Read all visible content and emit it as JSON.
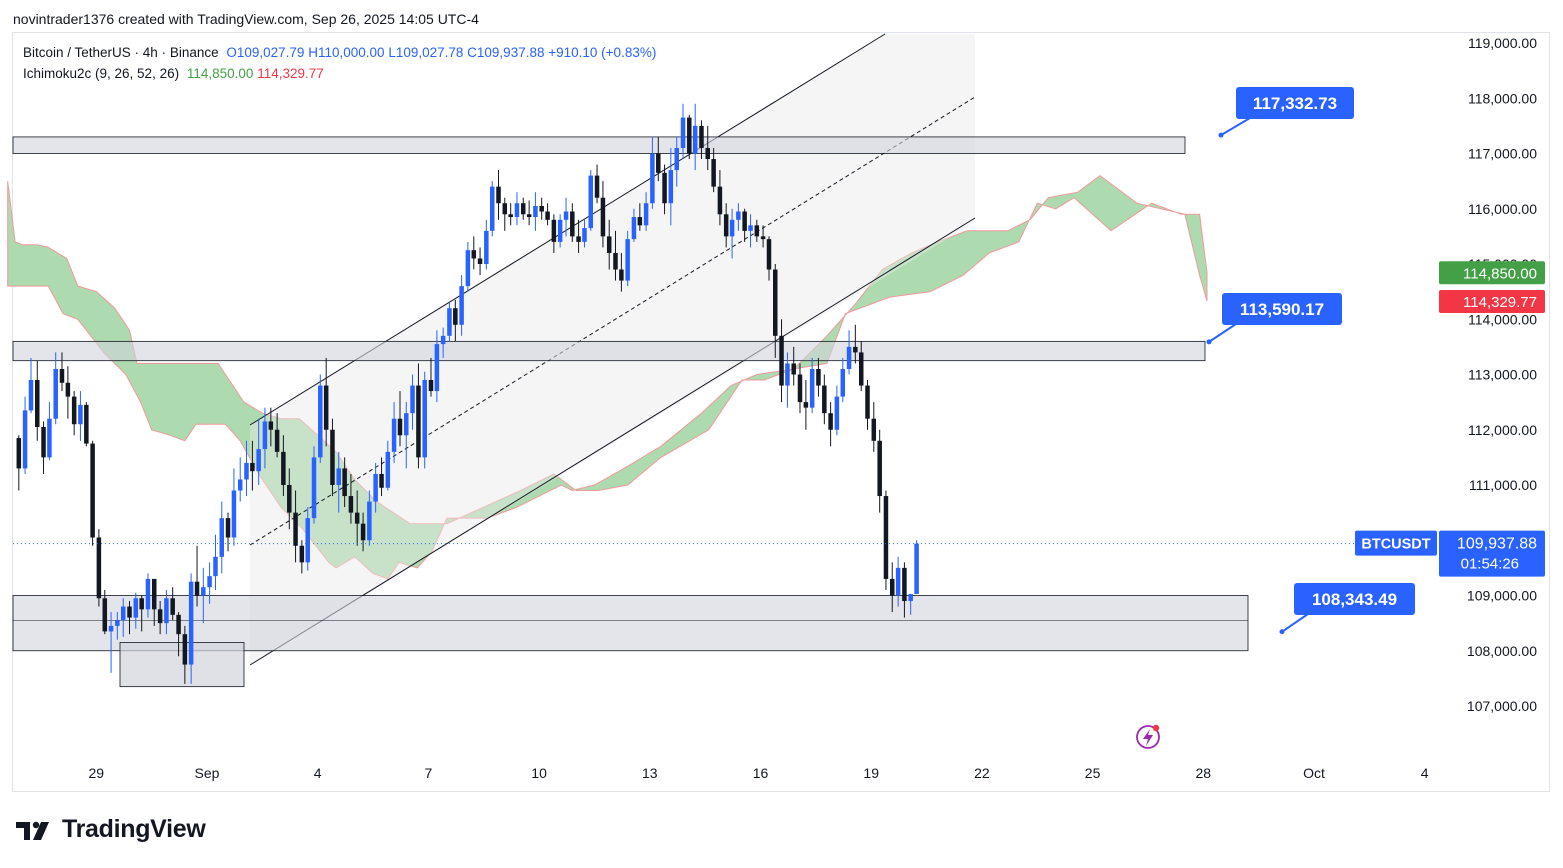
{
  "header": {
    "created_by": "novintrader1376 created with TradingView.com, Sep 26, 2025 14:05 UTC-4"
  },
  "legend": {
    "symbol": "Bitcoin / TetherUS · 4h · Binance",
    "open": "O109,027.79",
    "high": "H110,000.00",
    "low": "L109,027.78",
    "close": "C109,937.88",
    "change": "+910.10 (+0.83%)",
    "indicator_name": "Ichimoku2c (9, 26, 52, 26)",
    "indicator_value_a": "114,850.00",
    "indicator_value_b": "114,329.77"
  },
  "brand": {
    "name": "TradingView"
  },
  "colors": {
    "up": "#2962ff",
    "down": "#131722",
    "cloud_fill": "#a5d6a7",
    "cloud_edge": "#ef9a9a",
    "label_blue": "#2962ff",
    "label_green": "#43a047",
    "label_red": "#f23645",
    "zone_fill": "#d1d4dc"
  },
  "chart_data": {
    "type": "candlestick",
    "symbol": "BTCUSDT",
    "timeframe": "4h",
    "ylim": [
      106500,
      119500
    ],
    "y_ticks": [
      {
        "v": 119000,
        "label": "119,000.00"
      },
      {
        "v": 118000,
        "label": "118,000.00"
      },
      {
        "v": 117000,
        "label": "117,000.00"
      },
      {
        "v": 116000,
        "label": "116,000.00"
      },
      {
        "v": 115000,
        "label": "115,000.00"
      },
      {
        "v": 114000,
        "label": "114,000.00"
      },
      {
        "v": 113000,
        "label": "113,000.00"
      },
      {
        "v": 112000,
        "label": "112,000.00"
      },
      {
        "v": 111000,
        "label": "111,000.00"
      },
      {
        "v": 110000,
        "label": "110,000.00"
      },
      {
        "v": 109000,
        "label": "109,000.00"
      },
      {
        "v": 108000,
        "label": "108,000.00"
      },
      {
        "v": 107000,
        "label": "107,000.00"
      }
    ],
    "x_ticks": [
      {
        "t": -3,
        "label": "29"
      },
      {
        "t": 0,
        "label": "Sep"
      },
      {
        "t": 3,
        "label": "4"
      },
      {
        "t": 6,
        "label": "7"
      },
      {
        "t": 9,
        "label": "10"
      },
      {
        "t": 12,
        "label": "13"
      },
      {
        "t": 15,
        "label": "16"
      },
      {
        "t": 18,
        "label": "19"
      },
      {
        "t": 21,
        "label": "22"
      },
      {
        "t": 24,
        "label": "25"
      },
      {
        "t": 27,
        "label": "28"
      },
      {
        "t": 30,
        "label": "Oct"
      },
      {
        "t": 33,
        "label": "4"
      }
    ],
    "candles": [
      [
        -5.1,
        111850,
        111900,
        110900,
        111300
      ],
      [
        -4.93,
        111300,
        112600,
        111200,
        112350
      ],
      [
        -4.77,
        112350,
        113300,
        112300,
        112900
      ],
      [
        -4.6,
        112900,
        113250,
        111800,
        112050
      ],
      [
        -4.43,
        112050,
        112150,
        111200,
        111500
      ],
      [
        -4.27,
        111500,
        112500,
        111450,
        112200
      ],
      [
        -4.1,
        112200,
        113400,
        112100,
        113100
      ],
      [
        -3.93,
        113100,
        113400,
        112700,
        112850
      ],
      [
        -3.77,
        112850,
        113150,
        112200,
        112600
      ],
      [
        -3.6,
        112600,
        112700,
        111900,
        112100
      ],
      [
        -3.43,
        112100,
        112700,
        111800,
        112450
      ],
      [
        -3.27,
        112450,
        112500,
        111700,
        111750
      ],
      [
        -3.1,
        111750,
        111800,
        109900,
        110050
      ],
      [
        -2.93,
        110050,
        110200,
        108800,
        108950
      ],
      [
        -2.77,
        108950,
        109100,
        108300,
        108350
      ],
      [
        -2.6,
        108350,
        108700,
        107600,
        108450
      ],
      [
        -2.43,
        108450,
        108700,
        108200,
        108550
      ],
      [
        -2.27,
        108550,
        108950,
        108250,
        108800
      ],
      [
        -2.1,
        108800,
        108900,
        108300,
        108600
      ],
      [
        -1.93,
        108600,
        109050,
        108400,
        108950
      ],
      [
        -1.77,
        108950,
        109000,
        108350,
        108750
      ],
      [
        -1.6,
        108750,
        109400,
        108600,
        109300
      ],
      [
        -1.43,
        109300,
        109300,
        108450,
        108750
      ],
      [
        -1.27,
        108750,
        108900,
        108300,
        108500
      ],
      [
        -1.1,
        108500,
        109100,
        108300,
        108950
      ],
      [
        -0.93,
        108950,
        109150,
        108550,
        108650
      ],
      [
        -0.77,
        108650,
        108700,
        107900,
        108300
      ],
      [
        -0.6,
        108300,
        108450,
        107400,
        107750
      ],
      [
        -0.43,
        107750,
        109400,
        107400,
        109250
      ],
      [
        -0.27,
        109250,
        109900,
        108800,
        109000
      ],
      [
        -0.1,
        109000,
        109500,
        108500,
        109150
      ],
      [
        0.07,
        109150,
        109600,
        108850,
        109350
      ],
      [
        0.23,
        109350,
        110100,
        109100,
        109700
      ],
      [
        0.4,
        109700,
        110700,
        109400,
        110400
      ],
      [
        0.57,
        110400,
        110500,
        109800,
        110050
      ],
      [
        0.73,
        110050,
        111300,
        109900,
        110900
      ],
      [
        0.9,
        110900,
        111500,
        110700,
        111100
      ],
      [
        1.07,
        111100,
        111800,
        110800,
        111400
      ],
      [
        1.23,
        111400,
        111800,
        110900,
        111250
      ],
      [
        1.4,
        111250,
        112200,
        111000,
        111650
      ],
      [
        1.57,
        111650,
        112400,
        111300,
        112150
      ],
      [
        1.73,
        112150,
        112400,
        111700,
        112000
      ],
      [
        1.9,
        112000,
        112300,
        111500,
        111600
      ],
      [
        2.07,
        111600,
        111900,
        110800,
        111000
      ],
      [
        2.23,
        111000,
        111300,
        110200,
        110500
      ],
      [
        2.4,
        110500,
        110900,
        109600,
        109900
      ],
      [
        2.57,
        109900,
        110000,
        109400,
        109600
      ],
      [
        2.73,
        109600,
        110600,
        109450,
        110400
      ],
      [
        2.9,
        110400,
        111700,
        110300,
        111500
      ],
      [
        3.07,
        111500,
        113000,
        111400,
        112800
      ],
      [
        3.23,
        112800,
        113300,
        111700,
        112000
      ],
      [
        3.4,
        112000,
        112200,
        110800,
        111000
      ],
      [
        3.57,
        111000,
        111600,
        110500,
        111300
      ],
      [
        3.73,
        111300,
        111500,
        110600,
        110800
      ],
      [
        3.9,
        110800,
        111200,
        110300,
        110500
      ],
      [
        4.07,
        110500,
        110900,
        109900,
        110300
      ],
      [
        4.23,
        110300,
        110500,
        109800,
        110000
      ],
      [
        4.4,
        110000,
        110900,
        109900,
        110700
      ],
      [
        4.57,
        110700,
        111400,
        110500,
        111200
      ],
      [
        4.73,
        111200,
        111500,
        110800,
        110950
      ],
      [
        4.9,
        110950,
        111800,
        110900,
        111600
      ],
      [
        5.07,
        111600,
        112500,
        111400,
        112200
      ],
      [
        5.23,
        112200,
        112700,
        111700,
        111900
      ],
      [
        5.4,
        111900,
        112500,
        111300,
        112300
      ],
      [
        5.57,
        112300,
        113000,
        112000,
        112800
      ],
      [
        5.73,
        112800,
        113200,
        111300,
        111500
      ],
      [
        5.9,
        111500,
        113050,
        111300,
        112900
      ],
      [
        6.07,
        112900,
        113300,
        112600,
        112700
      ],
      [
        6.23,
        112700,
        113800,
        112500,
        113550
      ],
      [
        6.4,
        113550,
        113850,
        113300,
        113700
      ],
      [
        6.57,
        113700,
        114300,
        113600,
        114200
      ],
      [
        6.73,
        114200,
        114350,
        113600,
        113900
      ],
      [
        6.9,
        113900,
        114800,
        113700,
        114600
      ],
      [
        7.07,
        114600,
        115400,
        114500,
        115250
      ],
      [
        7.23,
        115250,
        115500,
        114900,
        115100
      ],
      [
        7.4,
        115100,
        115300,
        114800,
        115000
      ],
      [
        7.57,
        115000,
        115800,
        114900,
        115600
      ],
      [
        7.73,
        115600,
        116500,
        115500,
        116400
      ],
      [
        7.9,
        116400,
        116700,
        115800,
        116100
      ],
      [
        8.07,
        116100,
        116200,
        115600,
        115900
      ],
      [
        8.23,
        115900,
        116100,
        115700,
        115850
      ],
      [
        8.4,
        115850,
        116300,
        115700,
        116100
      ],
      [
        8.57,
        116100,
        116200,
        115800,
        115900
      ],
      [
        8.73,
        115900,
        116150,
        115700,
        115850
      ],
      [
        8.9,
        115850,
        116300,
        115600,
        116050
      ],
      [
        9.07,
        116050,
        116200,
        115800,
        115950
      ],
      [
        9.23,
        115950,
        116100,
        115700,
        115800
      ],
      [
        9.4,
        115800,
        115900,
        115200,
        115400
      ],
      [
        9.57,
        115400,
        115900,
        115300,
        115800
      ],
      [
        9.73,
        115800,
        116200,
        115500,
        115950
      ],
      [
        9.9,
        115950,
        116100,
        115400,
        115500
      ],
      [
        10.07,
        115500,
        115800,
        115200,
        115400
      ],
      [
        10.23,
        115400,
        115800,
        115300,
        115650
      ],
      [
        10.4,
        115650,
        116700,
        115600,
        116600
      ],
      [
        10.57,
        116600,
        116800,
        116100,
        116200
      ],
      [
        10.73,
        116200,
        116500,
        115300,
        115500
      ],
      [
        10.9,
        115500,
        115800,
        114900,
        115200
      ],
      [
        11.07,
        115200,
        115600,
        114700,
        114900
      ],
      [
        11.23,
        114900,
        115200,
        114500,
        114700
      ],
      [
        11.4,
        114700,
        115600,
        114600,
        115450
      ],
      [
        11.57,
        115450,
        116000,
        115400,
        115850
      ],
      [
        11.73,
        115850,
        116100,
        115600,
        115700
      ],
      [
        11.9,
        115700,
        116300,
        115600,
        116100
      ],
      [
        12.07,
        116100,
        117300,
        116000,
        117000
      ],
      [
        12.23,
        117000,
        117300,
        116500,
        116650
      ],
      [
        12.4,
        116650,
        116800,
        115900,
        116100
      ],
      [
        12.57,
        116100,
        117100,
        115700,
        116700
      ],
      [
        12.73,
        116700,
        117300,
        116400,
        117100
      ],
      [
        12.9,
        117100,
        117900,
        116900,
        117650
      ],
      [
        13.07,
        117650,
        117700,
        116900,
        117000
      ],
      [
        13.23,
        117000,
        117900,
        116700,
        117500
      ],
      [
        13.4,
        117500,
        117600,
        116900,
        117100
      ],
      [
        13.57,
        117100,
        117500,
        116700,
        116900
      ],
      [
        13.73,
        116900,
        117100,
        116300,
        116400
      ],
      [
        13.9,
        116400,
        116700,
        115700,
        115900
      ],
      [
        14.07,
        115900,
        116100,
        115300,
        115500
      ],
      [
        14.23,
        115500,
        116000,
        115100,
        115800
      ],
      [
        14.4,
        115800,
        116100,
        115600,
        115950
      ],
      [
        14.57,
        115950,
        116000,
        115400,
        115600
      ],
      [
        14.73,
        115600,
        115900,
        115300,
        115700
      ],
      [
        14.9,
        115700,
        115800,
        115400,
        115500
      ],
      [
        15.07,
        115500,
        115700,
        115300,
        115450
      ],
      [
        15.23,
        115450,
        115500,
        114700,
        114900
      ],
      [
        15.4,
        114900,
        115000,
        113300,
        113700
      ],
      [
        15.57,
        113700,
        114000,
        112500,
        112800
      ],
      [
        15.73,
        112800,
        113400,
        112400,
        113200
      ],
      [
        15.9,
        113200,
        113500,
        112800,
        113000
      ],
      [
        16.07,
        113000,
        113200,
        112300,
        112500
      ],
      [
        16.23,
        112500,
        112900,
        112000,
        112400
      ],
      [
        16.4,
        112400,
        113300,
        112300,
        113100
      ],
      [
        16.57,
        113100,
        113300,
        112600,
        112800
      ],
      [
        16.73,
        112800,
        113000,
        112100,
        112300
      ],
      [
        16.9,
        112300,
        112500,
        111700,
        112000
      ],
      [
        17.07,
        112000,
        112800,
        111900,
        112600
      ],
      [
        17.23,
        112600,
        113300,
        112500,
        113100
      ],
      [
        17.4,
        113100,
        113800,
        113000,
        113500
      ],
      [
        17.57,
        113500,
        113900,
        113200,
        113400
      ],
      [
        17.73,
        113400,
        113600,
        112700,
        112800
      ],
      [
        17.9,
        112800,
        112900,
        112000,
        112200
      ],
      [
        18.07,
        112200,
        112500,
        111600,
        111800
      ],
      [
        18.23,
        111800,
        112000,
        110500,
        110800
      ],
      [
        18.4,
        110800,
        110900,
        109100,
        109300
      ],
      [
        18.57,
        109300,
        109600,
        108700,
        109000
      ],
      [
        18.73,
        109000,
        109700,
        108800,
        109500
      ],
      [
        18.9,
        109500,
        109600,
        108600,
        108900
      ],
      [
        19.07,
        108900,
        109000,
        108650,
        109027.79
      ],
      [
        19.23,
        109027.79,
        110000,
        109027.78,
        109937.88
      ]
    ],
    "ichimoku": {
      "name": "Ichimoku2c (9, 26, 52, 26)",
      "span_a_last": 114850.0,
      "span_b_last": 114329.77
    },
    "annotations": [
      {
        "label": "117,332.73",
        "price": 117332.73
      },
      {
        "label": "113,590.17",
        "price": 113590.17
      },
      {
        "label": "108,343.49",
        "price": 108343.49
      }
    ],
    "zones": [
      {
        "from": 117000,
        "to": 117300
      },
      {
        "from": 113250,
        "to": 113600
      },
      {
        "from": 108000,
        "to": 109000
      }
    ],
    "last_price": {
      "symbol": "BTCUSDT",
      "value": "109,937.88",
      "countdown": "01:54:26",
      "price": 109937.88
    },
    "cloud_labels": [
      {
        "value": "114,850.00",
        "price": 114850.0,
        "color": "green"
      },
      {
        "value": "114,329.77",
        "price": 114329.77,
        "color": "red"
      }
    ]
  }
}
